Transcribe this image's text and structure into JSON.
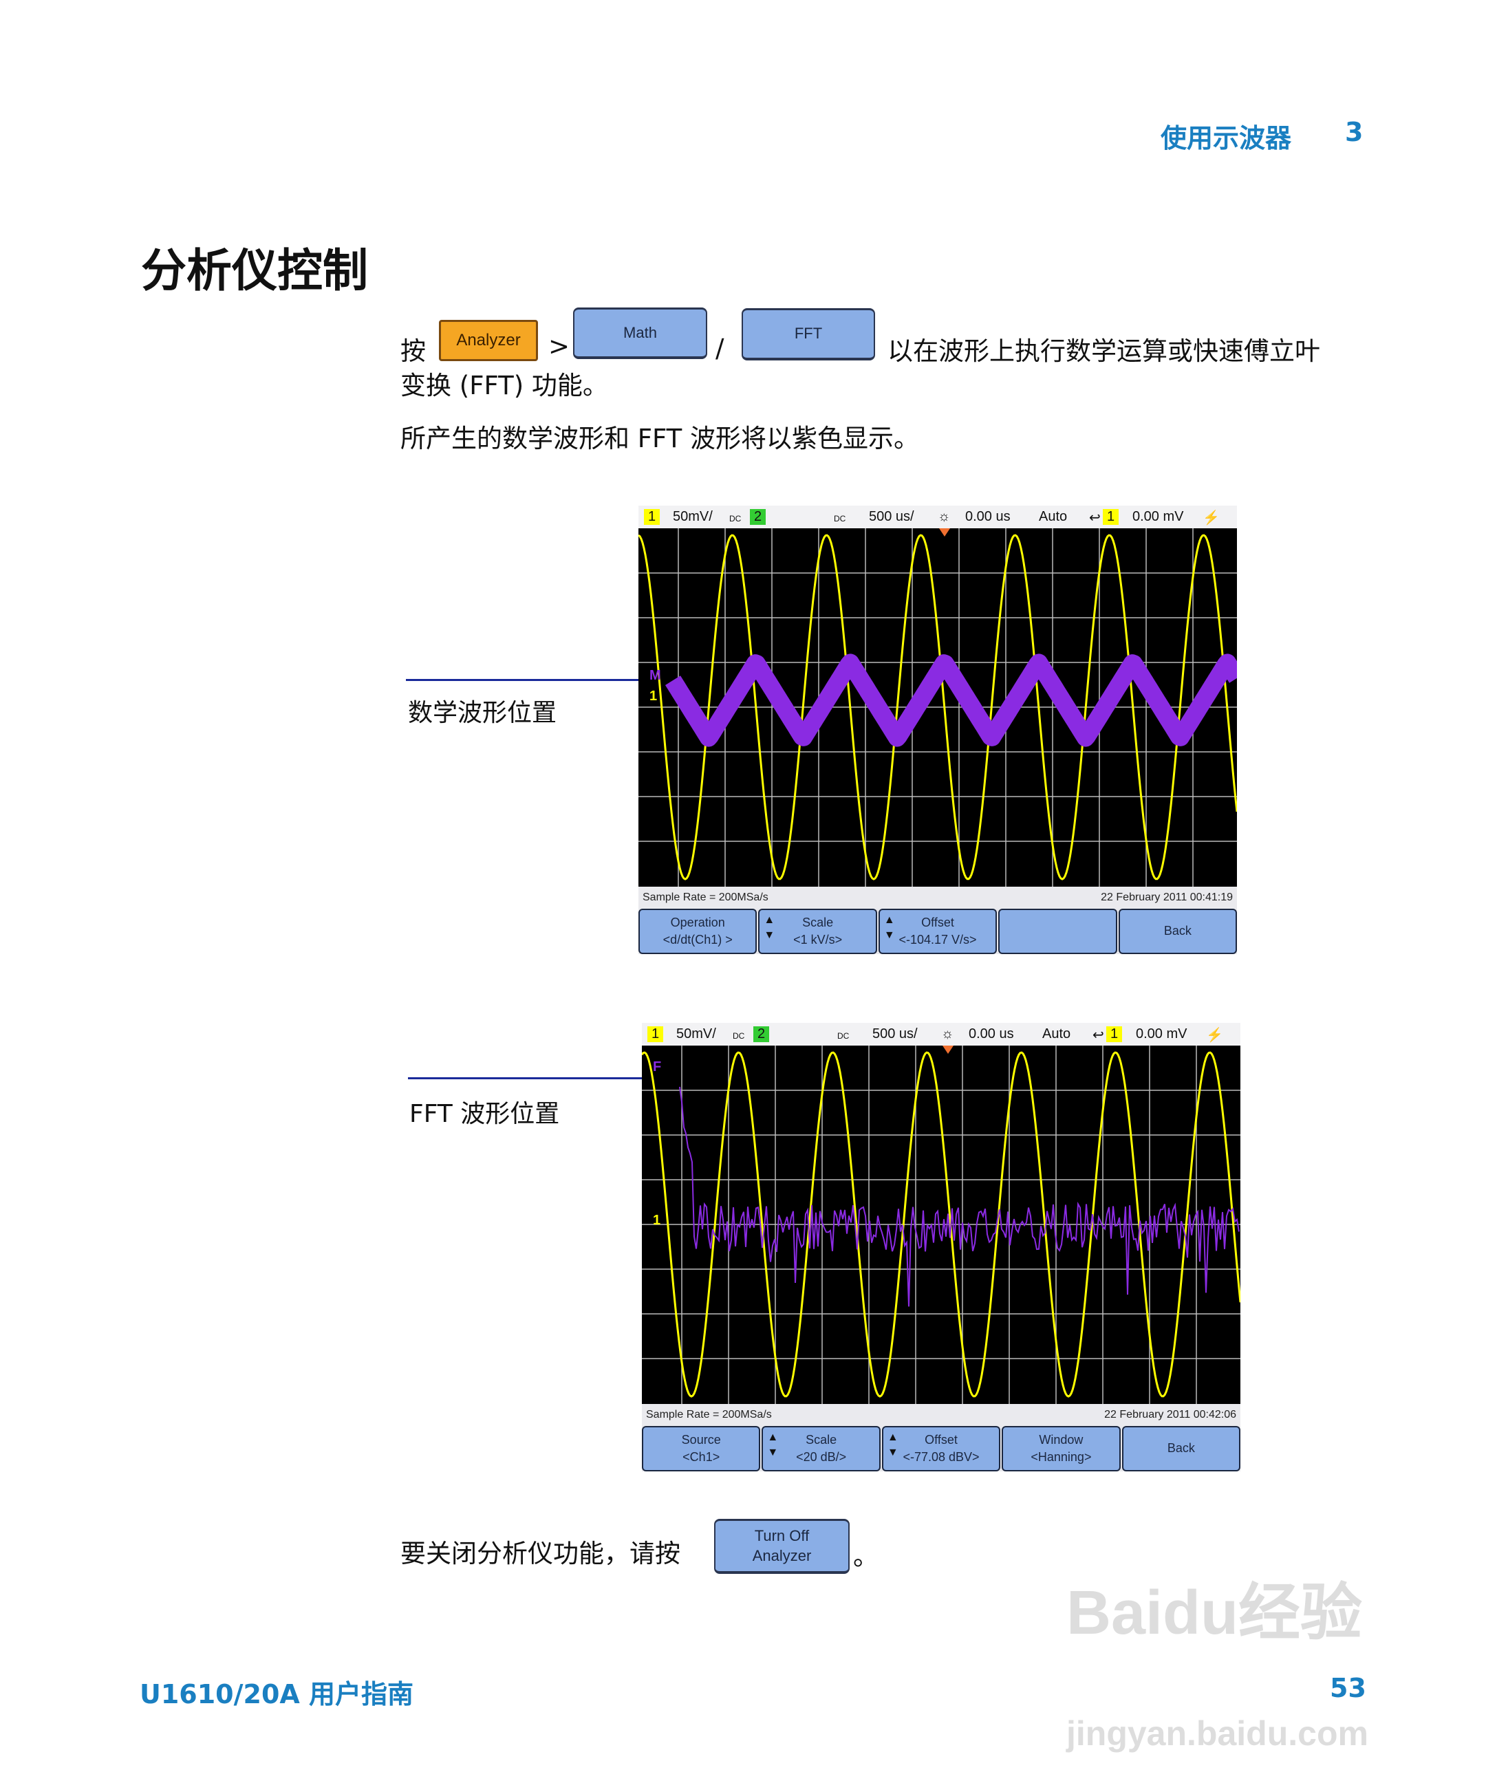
{
  "header": {
    "chapter_title": "使用示波器",
    "chapter_number": "3"
  },
  "section_title": "分析仪控制",
  "intro": {
    "press": "按",
    "analyzer_key": "Analyzer",
    "gt": ">",
    "math_key": "Math",
    "slash": "/",
    "fft_key": "FFT",
    "line1_rest": "以在波形上执行数学运算或快速傅立叶",
    "line2": "变换 (FFT) 功能。",
    "line3": "所产生的数学波形和 FFT 波形将以紫色显示。"
  },
  "scope1": {
    "callout": "数学波形位置",
    "top": {
      "ch1": "1",
      "ch1_scale": "50mV/",
      "ch1_coupling": "DC",
      "ch2": "2",
      "ch2_coupling": "DC",
      "timebase": "500 us/",
      "delay": "0.00 us",
      "trigger_mode": "Auto",
      "trig_src": "1",
      "trig_level": "0.00 mV"
    },
    "marker_math": "M",
    "marker_ch1": "1",
    "sample_rate": "Sample Rate = 200MSa/s",
    "datetime": "22 February 2011  00:41:19",
    "softkeys": [
      {
        "label": "Operation",
        "value": "<d/dt(Ch1) >",
        "arrows": false
      },
      {
        "label": "Scale",
        "value": "<1 kV/s>",
        "arrows": true
      },
      {
        "label": "Offset",
        "value": "<-104.17 V/s>",
        "arrows": true
      },
      {
        "label": "",
        "value": "",
        "arrows": false
      },
      {
        "label": "Back",
        "value": "",
        "arrows": false
      }
    ]
  },
  "scope2": {
    "callout": "FFT 波形位置",
    "top": {
      "ch1": "1",
      "ch1_scale": "50mV/",
      "ch1_coupling": "DC",
      "ch2": "2",
      "ch2_coupling": "DC",
      "timebase": "500 us/",
      "delay": "0.00 us",
      "trigger_mode": "Auto",
      "trig_src": "1",
      "trig_level": "0.00 mV"
    },
    "marker_fft": "F",
    "marker_ch1": "1",
    "sample_rate": "Sample Rate = 200MSa/s",
    "datetime": "22 February 2011  00:42:06",
    "softkeys": [
      {
        "label": "Source",
        "value": "<Ch1>",
        "arrows": false
      },
      {
        "label": "Scale",
        "value": "<20 dB/>",
        "arrows": true
      },
      {
        "label": "Offset",
        "value": "<-77.08 dBV>",
        "arrows": true
      },
      {
        "label": "Window",
        "value": "<Hanning>",
        "arrows": false
      },
      {
        "label": "Back",
        "value": "",
        "arrows": false
      }
    ]
  },
  "closing": {
    "text": "要关闭分析仪功能，请按",
    "key_line1": "Turn Off",
    "key_line2": "Analyzer",
    "period": "。"
  },
  "footer": {
    "manual": "U1610/20A 用户指南",
    "page": "53"
  },
  "watermark": {
    "line1": "Baidu经验",
    "line2": "jingyan.baidu.com"
  },
  "colors": {
    "accent": "#1a7fc1",
    "ch1": "#ffff00",
    "ch2": "#33cc33",
    "math": "#8a2be2",
    "softkey": "#8aaee6"
  }
}
